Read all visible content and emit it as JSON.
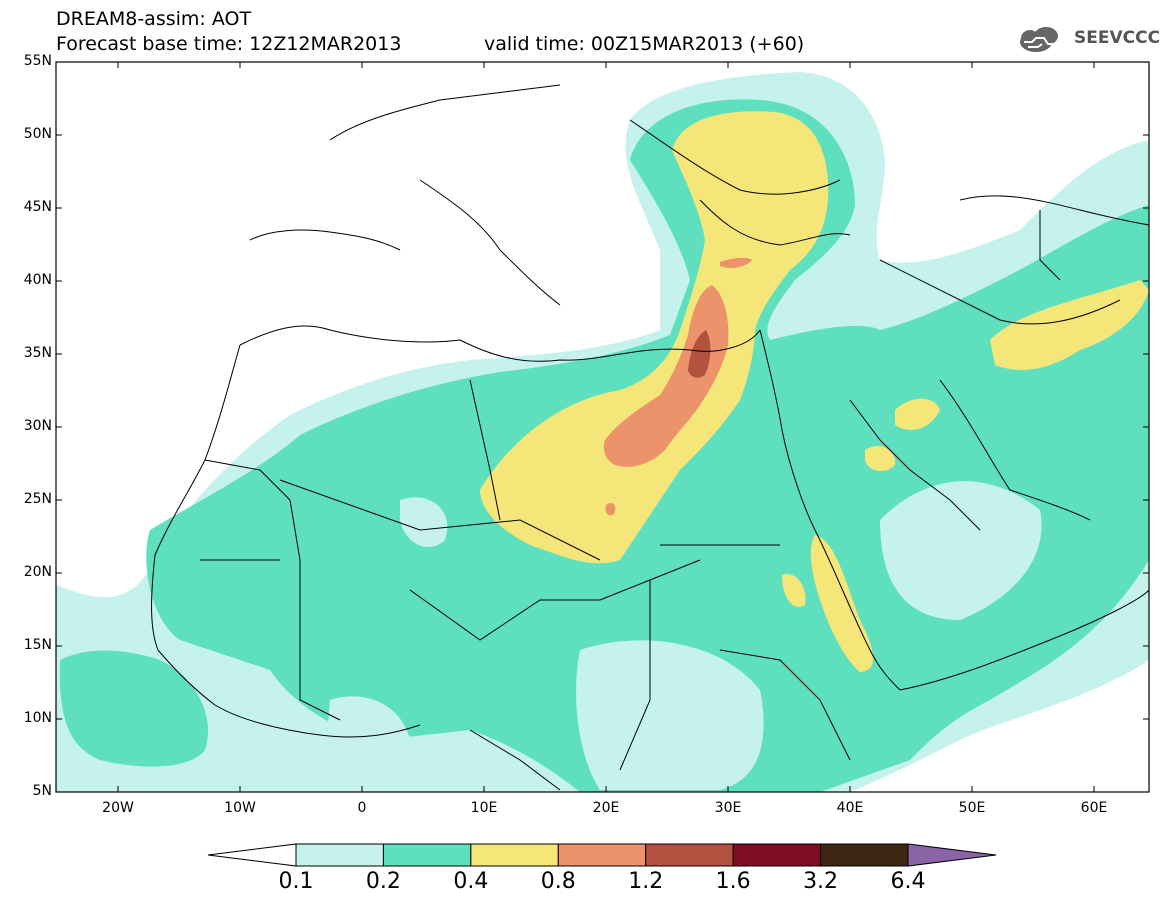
{
  "header": {
    "title": "DREAM8-assim: AOT",
    "base_time": "Forecast base time: 12Z12MAR2013",
    "valid_time": "valid time: 00Z15MAR2013 (+60)",
    "logo_text": "SEEVCCC"
  },
  "axes": {
    "lat_labels": [
      "55N",
      "50N",
      "45N",
      "40N",
      "35N",
      "30N",
      "25N",
      "20N",
      "15N",
      "10N",
      "5N"
    ],
    "lon_labels": [
      "20W",
      "10W",
      "0",
      "10E",
      "20E",
      "30E",
      "40E",
      "50E",
      "60E"
    ]
  },
  "colorbar": {
    "labels": [
      "0.1",
      "0.2",
      "0.4",
      "0.8",
      "1.2",
      "1.6",
      "3.2",
      "6.4"
    ],
    "colors": [
      "#c5f2ec",
      "#5ee0be",
      "#f5e67a",
      "#ec936b",
      "#b5513f",
      "#7d0e26",
      "#3e2612",
      "#8a64a6"
    ]
  },
  "colors": {
    "level1": "#c5f2ec",
    "level2": "#5ee0be",
    "level3": "#f5e67a",
    "level4": "#ec936b",
    "level5": "#b5513f"
  }
}
